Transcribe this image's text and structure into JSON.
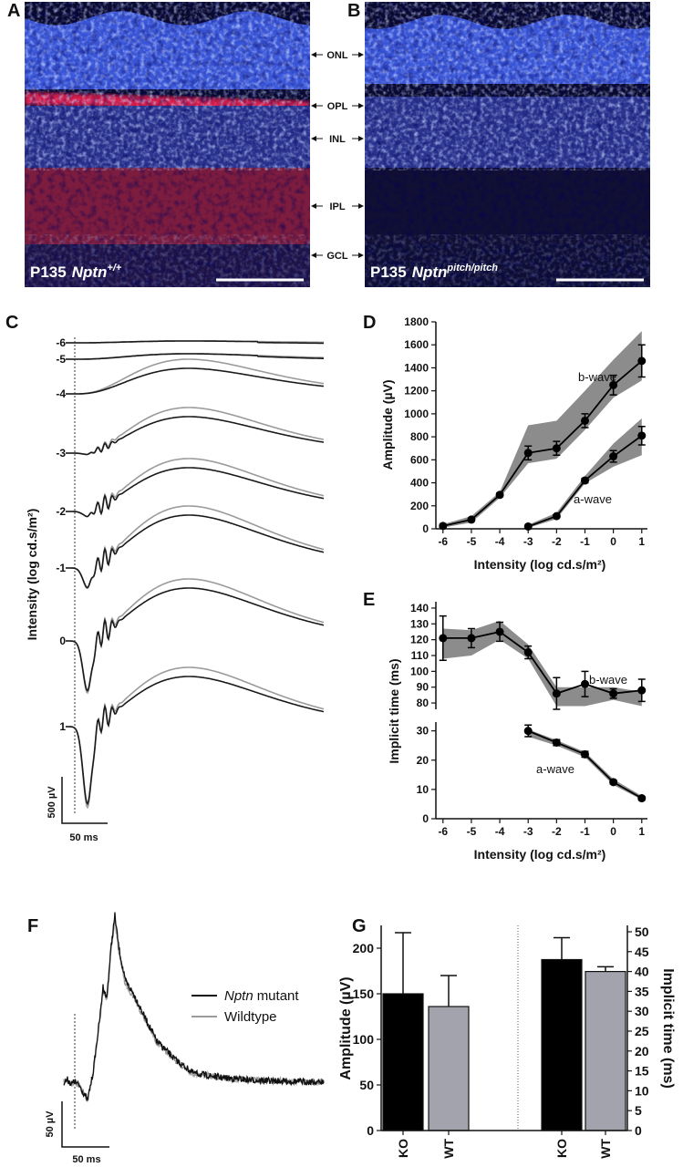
{
  "images": [
    {
      "letter": "A",
      "age": "P135",
      "gene": "Nptn",
      "genotype": "+/+"
    },
    {
      "letter": "B",
      "age": "P135",
      "gene": "Nptn",
      "genotype": "pitch/pitch"
    }
  ],
  "layers": [
    "ONL",
    "OPL",
    "INL",
    "IPL",
    "GCL"
  ],
  "traces_c": {
    "letter": "C",
    "ylabel": "Intensity (log cd.s/m²)",
    "intensities": [
      -6,
      -5,
      -4,
      -3,
      -2,
      -1,
      0,
      1
    ],
    "colors": [
      "#1a1a1a",
      "#9b9b9b"
    ],
    "scale_y": "500 µV",
    "scale_x": "50 ms"
  },
  "traces_f": {
    "letter": "F",
    "series": [
      {
        "gene": "Nptn",
        "name": "mutant",
        "color": "#111111"
      },
      {
        "name": "Wildtype",
        "color": "#9b9b9b"
      }
    ],
    "scale_y": "50 µV",
    "scale_x": "50 ms"
  },
  "chart_data": [
    {
      "type": "line",
      "letter": "D",
      "ylabel": "Amplitude (µV)",
      "xlabel": "Intensity (log cd.s/m²)",
      "xlim": [
        -6.25,
        1.2
      ],
      "xticks": [
        -6,
        -5,
        -4,
        -3,
        -2,
        -1,
        0,
        1
      ],
      "ylim": [
        0,
        1800
      ],
      "yticks": [
        0,
        200,
        400,
        600,
        800,
        1000,
        1200,
        1400,
        1600,
        1800
      ],
      "color": "#000000",
      "band_color": "#8c8c8c",
      "series": [
        {
          "name": "b-wave",
          "x": [
            -6,
            -5,
            -4,
            -3,
            -2,
            -1,
            0,
            1
          ],
          "values": [
            25,
            80,
            295,
            660,
            700,
            940,
            1250,
            1460
          ],
          "errors": [
            12,
            12,
            15,
            60,
            60,
            60,
            85,
            140
          ],
          "band_low": [
            10,
            55,
            270,
            570,
            610,
            860,
            1140,
            1290
          ],
          "band_high": [
            40,
            110,
            320,
            900,
            940,
            1200,
            1470,
            1720
          ]
        },
        {
          "name": "a-wave",
          "x": [
            -3,
            -2,
            -1,
            0,
            1
          ],
          "values": [
            20,
            110,
            420,
            630,
            810
          ],
          "errors": [
            5,
            10,
            20,
            50,
            80
          ],
          "band_low": [
            8,
            85,
            395,
            540,
            640
          ],
          "band_high": [
            35,
            140,
            460,
            740,
            960
          ]
        }
      ]
    },
    {
      "type": "line",
      "letter": "E",
      "ylabel": "Implicit time (ms)",
      "xlim": [
        -6.25,
        1.2
      ],
      "ylim": [
        76,
        144
      ],
      "yticks": [
        80,
        90,
        100,
        110,
        120,
        130,
        140
      ],
      "color": "#000000",
      "band_color": "#8c8c8c",
      "series": [
        {
          "name": "b-wave",
          "x": [
            -6,
            -5,
            -4,
            -3,
            -2,
            -1,
            0,
            1
          ],
          "values": [
            121,
            121,
            125,
            112,
            86,
            92,
            86,
            88
          ],
          "errors": [
            14,
            6,
            6,
            4,
            10,
            8,
            3,
            7
          ],
          "band_low": [
            108,
            110,
            120,
            108,
            78,
            78,
            82,
            78
          ],
          "band_high": [
            127,
            126,
            132,
            117,
            90,
            90,
            90,
            87
          ]
        }
      ]
    },
    {
      "type": "line",
      "xlabel": "Intensity (log cd.s/m²)",
      "xlim": [
        -6.25,
        1.2
      ],
      "xticks": [
        -6,
        -5,
        -4,
        -3,
        -2,
        -1,
        0,
        1
      ],
      "ylim": [
        0,
        33
      ],
      "yticks": [
        0,
        10,
        20,
        30
      ],
      "color": "#000000",
      "band_color": "#8c8c8c",
      "series": [
        {
          "name": "a-wave",
          "x": [
            -3,
            -2,
            -1,
            0,
            1
          ],
          "values": [
            30,
            26,
            22,
            12.5,
            7
          ],
          "errors": [
            2,
            1,
            1,
            0.6,
            0.6
          ],
          "band_low": [
            28,
            25,
            21,
            11.5,
            6.5
          ],
          "band_high": [
            30.5,
            26.8,
            22.8,
            13.5,
            7.8
          ]
        }
      ]
    },
    {
      "type": "bar",
      "letter": "G",
      "categories": [
        "KO",
        "WT",
        "KO",
        "WT"
      ],
      "colors": [
        "#000000",
        "#a3a3ad",
        "#000000",
        "#a3a3ad"
      ],
      "ylabel": "Amplitude (µV)",
      "y2label": "Implicit time (ms)",
      "ylim": [
        0,
        225
      ],
      "yticks": [
        0,
        50,
        100,
        150,
        200
      ],
      "y2lim": [
        0,
        51.6
      ],
      "y2ticks": [
        0,
        5,
        10,
        15,
        20,
        25,
        30,
        35,
        40,
        45,
        50
      ],
      "series": [
        {
          "values": [
            150,
            136,
            null,
            null
          ],
          "errors": [
            67,
            34,
            null,
            null
          ]
        },
        {
          "axis": "y2",
          "values": [
            null,
            null,
            43,
            40
          ],
          "errors": [
            null,
            null,
            5.5,
            1.2
          ]
        }
      ]
    }
  ]
}
